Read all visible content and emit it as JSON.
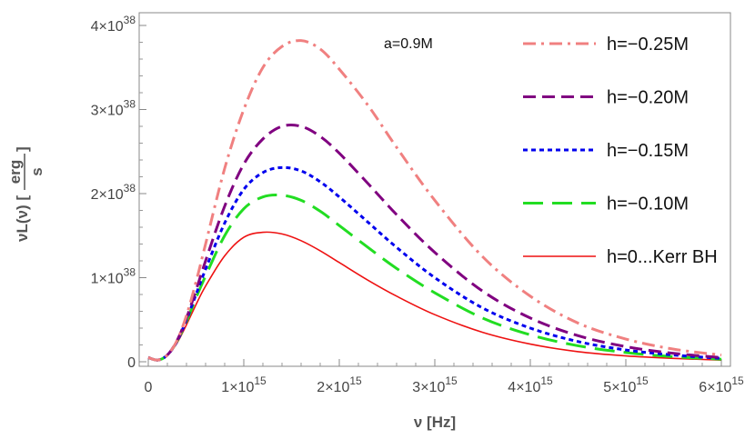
{
  "chart_data": {
    "type": "line",
    "title": "",
    "annotation": "a=0.9M",
    "xlabel": "ν [Hz]",
    "ylabel": {
      "main": "νL(ν) [",
      "frac_num": "erg",
      "frac_den": "s",
      "close": "]"
    },
    "xlim": [
      0,
      6000000000000000.0
    ],
    "ylim": [
      0,
      4e+38
    ],
    "x_ticks": [
      {
        "v": 0,
        "mant": "0",
        "exp": ""
      },
      {
        "v": 1000000000000000.0,
        "mant": "1×10",
        "exp": "15"
      },
      {
        "v": 2000000000000000.0,
        "mant": "2×10",
        "exp": "15"
      },
      {
        "v": 3000000000000000.0,
        "mant": "3×10",
        "exp": "15"
      },
      {
        "v": 4000000000000000.0,
        "mant": "4×10",
        "exp": "15"
      },
      {
        "v": 5000000000000000.0,
        "mant": "5×10",
        "exp": "15"
      },
      {
        "v": 6000000000000000.0,
        "mant": "6×10",
        "exp": "15"
      }
    ],
    "y_ticks": [
      {
        "v": 0,
        "mant": "0",
        "exp": ""
      },
      {
        "v": 1e+38,
        "mant": "1×10",
        "exp": "38"
      },
      {
        "v": 2e+38,
        "mant": "2×10",
        "exp": "38"
      },
      {
        "v": 3e+38,
        "mant": "3×10",
        "exp": "38"
      },
      {
        "v": 4e+38,
        "mant": "4×10",
        "exp": "38"
      }
    ],
    "legend_position": "top-right",
    "x_units": 1000000000000000.0,
    "y_units": 1e+38,
    "series": [
      {
        "name": "h=−0.25M",
        "color": "#f08080",
        "dash": "dashdot",
        "x": [
          0,
          0.1,
          0.2,
          0.3,
          0.4,
          0.5,
          0.6,
          0.8,
          1.0,
          1.2,
          1.4,
          1.6,
          1.8,
          2.0,
          2.3,
          2.6,
          3.0,
          3.5,
          4.0,
          4.5,
          5.0,
          5.5,
          6.0
        ],
        "y": [
          0.05,
          0.02,
          0.08,
          0.25,
          0.55,
          0.95,
          1.4,
          2.3,
          3.0,
          3.5,
          3.75,
          3.82,
          3.72,
          3.48,
          3.05,
          2.55,
          1.92,
          1.25,
          0.78,
          0.46,
          0.27,
          0.15,
          0.08
        ]
      },
      {
        "name": "h=−0.20M",
        "color": "#800080",
        "dash": "dashed",
        "x": [
          0,
          0.1,
          0.2,
          0.3,
          0.4,
          0.5,
          0.6,
          0.8,
          1.0,
          1.2,
          1.4,
          1.6,
          1.8,
          2.0,
          2.3,
          2.6,
          3.0,
          3.5,
          4.0,
          4.5,
          5.0,
          5.5,
          6.0
        ],
        "y": [
          0.05,
          0.02,
          0.08,
          0.25,
          0.52,
          0.85,
          1.2,
          1.85,
          2.35,
          2.65,
          2.8,
          2.8,
          2.68,
          2.48,
          2.12,
          1.75,
          1.3,
          0.84,
          0.52,
          0.31,
          0.18,
          0.1,
          0.05
        ]
      },
      {
        "name": "h=−0.15M",
        "color": "#0000ee",
        "dash": "dotted",
        "x": [
          0,
          0.1,
          0.2,
          0.3,
          0.4,
          0.5,
          0.6,
          0.8,
          1.0,
          1.2,
          1.4,
          1.6,
          1.8,
          2.0,
          2.3,
          2.6,
          3.0,
          3.5,
          4.0,
          4.5,
          5.0,
          5.5,
          6.0
        ],
        "y": [
          0.05,
          0.02,
          0.08,
          0.24,
          0.5,
          0.8,
          1.1,
          1.65,
          2.05,
          2.25,
          2.31,
          2.27,
          2.14,
          1.96,
          1.66,
          1.36,
          1.0,
          0.64,
          0.4,
          0.24,
          0.14,
          0.08,
          0.04
        ]
      },
      {
        "name": "h=−0.10M",
        "color": "#22dd22",
        "dash": "longdash",
        "x": [
          0,
          0.1,
          0.2,
          0.3,
          0.4,
          0.5,
          0.6,
          0.8,
          1.0,
          1.2,
          1.4,
          1.6,
          1.8,
          2.0,
          2.3,
          2.6,
          3.0,
          3.5,
          4.0,
          4.5,
          5.0,
          5.5,
          6.0
        ],
        "y": [
          0.05,
          0.02,
          0.08,
          0.24,
          0.48,
          0.76,
          1.02,
          1.5,
          1.82,
          1.96,
          1.98,
          1.92,
          1.79,
          1.62,
          1.36,
          1.11,
          0.82,
          0.52,
          0.32,
          0.19,
          0.11,
          0.06,
          0.03
        ]
      },
      {
        "name": "h=0...Kerr BH",
        "color": "#ee1111",
        "dash": "solid",
        "x": [
          0,
          0.1,
          0.2,
          0.3,
          0.4,
          0.5,
          0.6,
          0.8,
          1.0,
          1.2,
          1.4,
          1.6,
          1.8,
          2.0,
          2.3,
          2.6,
          3.0,
          3.5,
          4.0,
          4.5,
          5.0,
          5.5,
          6.0
        ],
        "y": [
          0.05,
          0.02,
          0.08,
          0.22,
          0.44,
          0.68,
          0.9,
          1.26,
          1.48,
          1.54,
          1.52,
          1.44,
          1.32,
          1.18,
          0.97,
          0.78,
          0.56,
          0.35,
          0.21,
          0.12,
          0.07,
          0.04,
          0.02
        ]
      }
    ]
  }
}
